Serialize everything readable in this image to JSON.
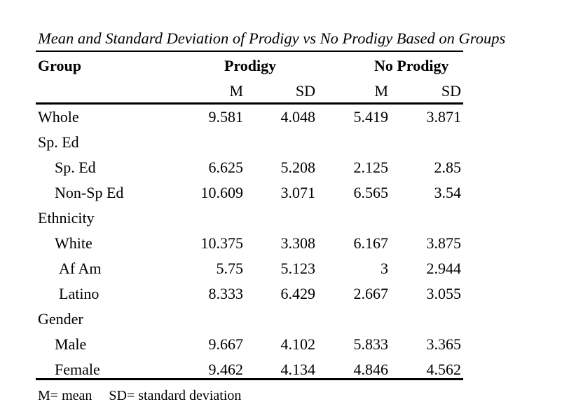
{
  "caption": "Mean and Standard Deviation of Prodigy vs No Prodigy Based on Groups",
  "header": {
    "group": "Group",
    "prodigy": "Prodigy",
    "no_prodigy": "No Prodigy",
    "m1": "M",
    "sd1": "SD",
    "m2": "M",
    "sd2": "SD"
  },
  "rows": [
    {
      "label": "Whole",
      "pm": "9.581",
      "psd": "4.048",
      "nm": "5.419",
      "nsd": "3.871"
    },
    {
      "label": "Sp. Ed"
    },
    {
      "label": "Sp. Ed",
      "pm": "6.625",
      "psd": "5.208",
      "nm": "2.125",
      "nsd": "2.85"
    },
    {
      "label": "Non-Sp Ed",
      "pm": "10.609",
      "psd": "3.071",
      "nm": "6.565",
      "nsd": "3.54"
    },
    {
      "label": "Ethnicity"
    },
    {
      "label": "White",
      "pm": "10.375",
      "psd": "3.308",
      "nm": "6.167",
      "nsd": "3.875"
    },
    {
      "label": "Af Am",
      "pm": "5.75",
      "psd": "5.123",
      "nm": "3",
      "nsd": "2.944"
    },
    {
      "label": "Latino",
      "pm": "8.333",
      "psd": "6.429",
      "nm": "2.667",
      "nsd": "3.055"
    },
    {
      "label": "Gender"
    },
    {
      "label": "Male",
      "pm": "9.667",
      "psd": "4.102",
      "nm": "5.833",
      "nsd": "3.365"
    },
    {
      "label": "Female",
      "pm": "9.462",
      "psd": "4.134",
      "nm": "4.846",
      "nsd": "4.562"
    }
  ],
  "footnote": {
    "m": "M= mean",
    "sd": "SD= standard deviation"
  }
}
